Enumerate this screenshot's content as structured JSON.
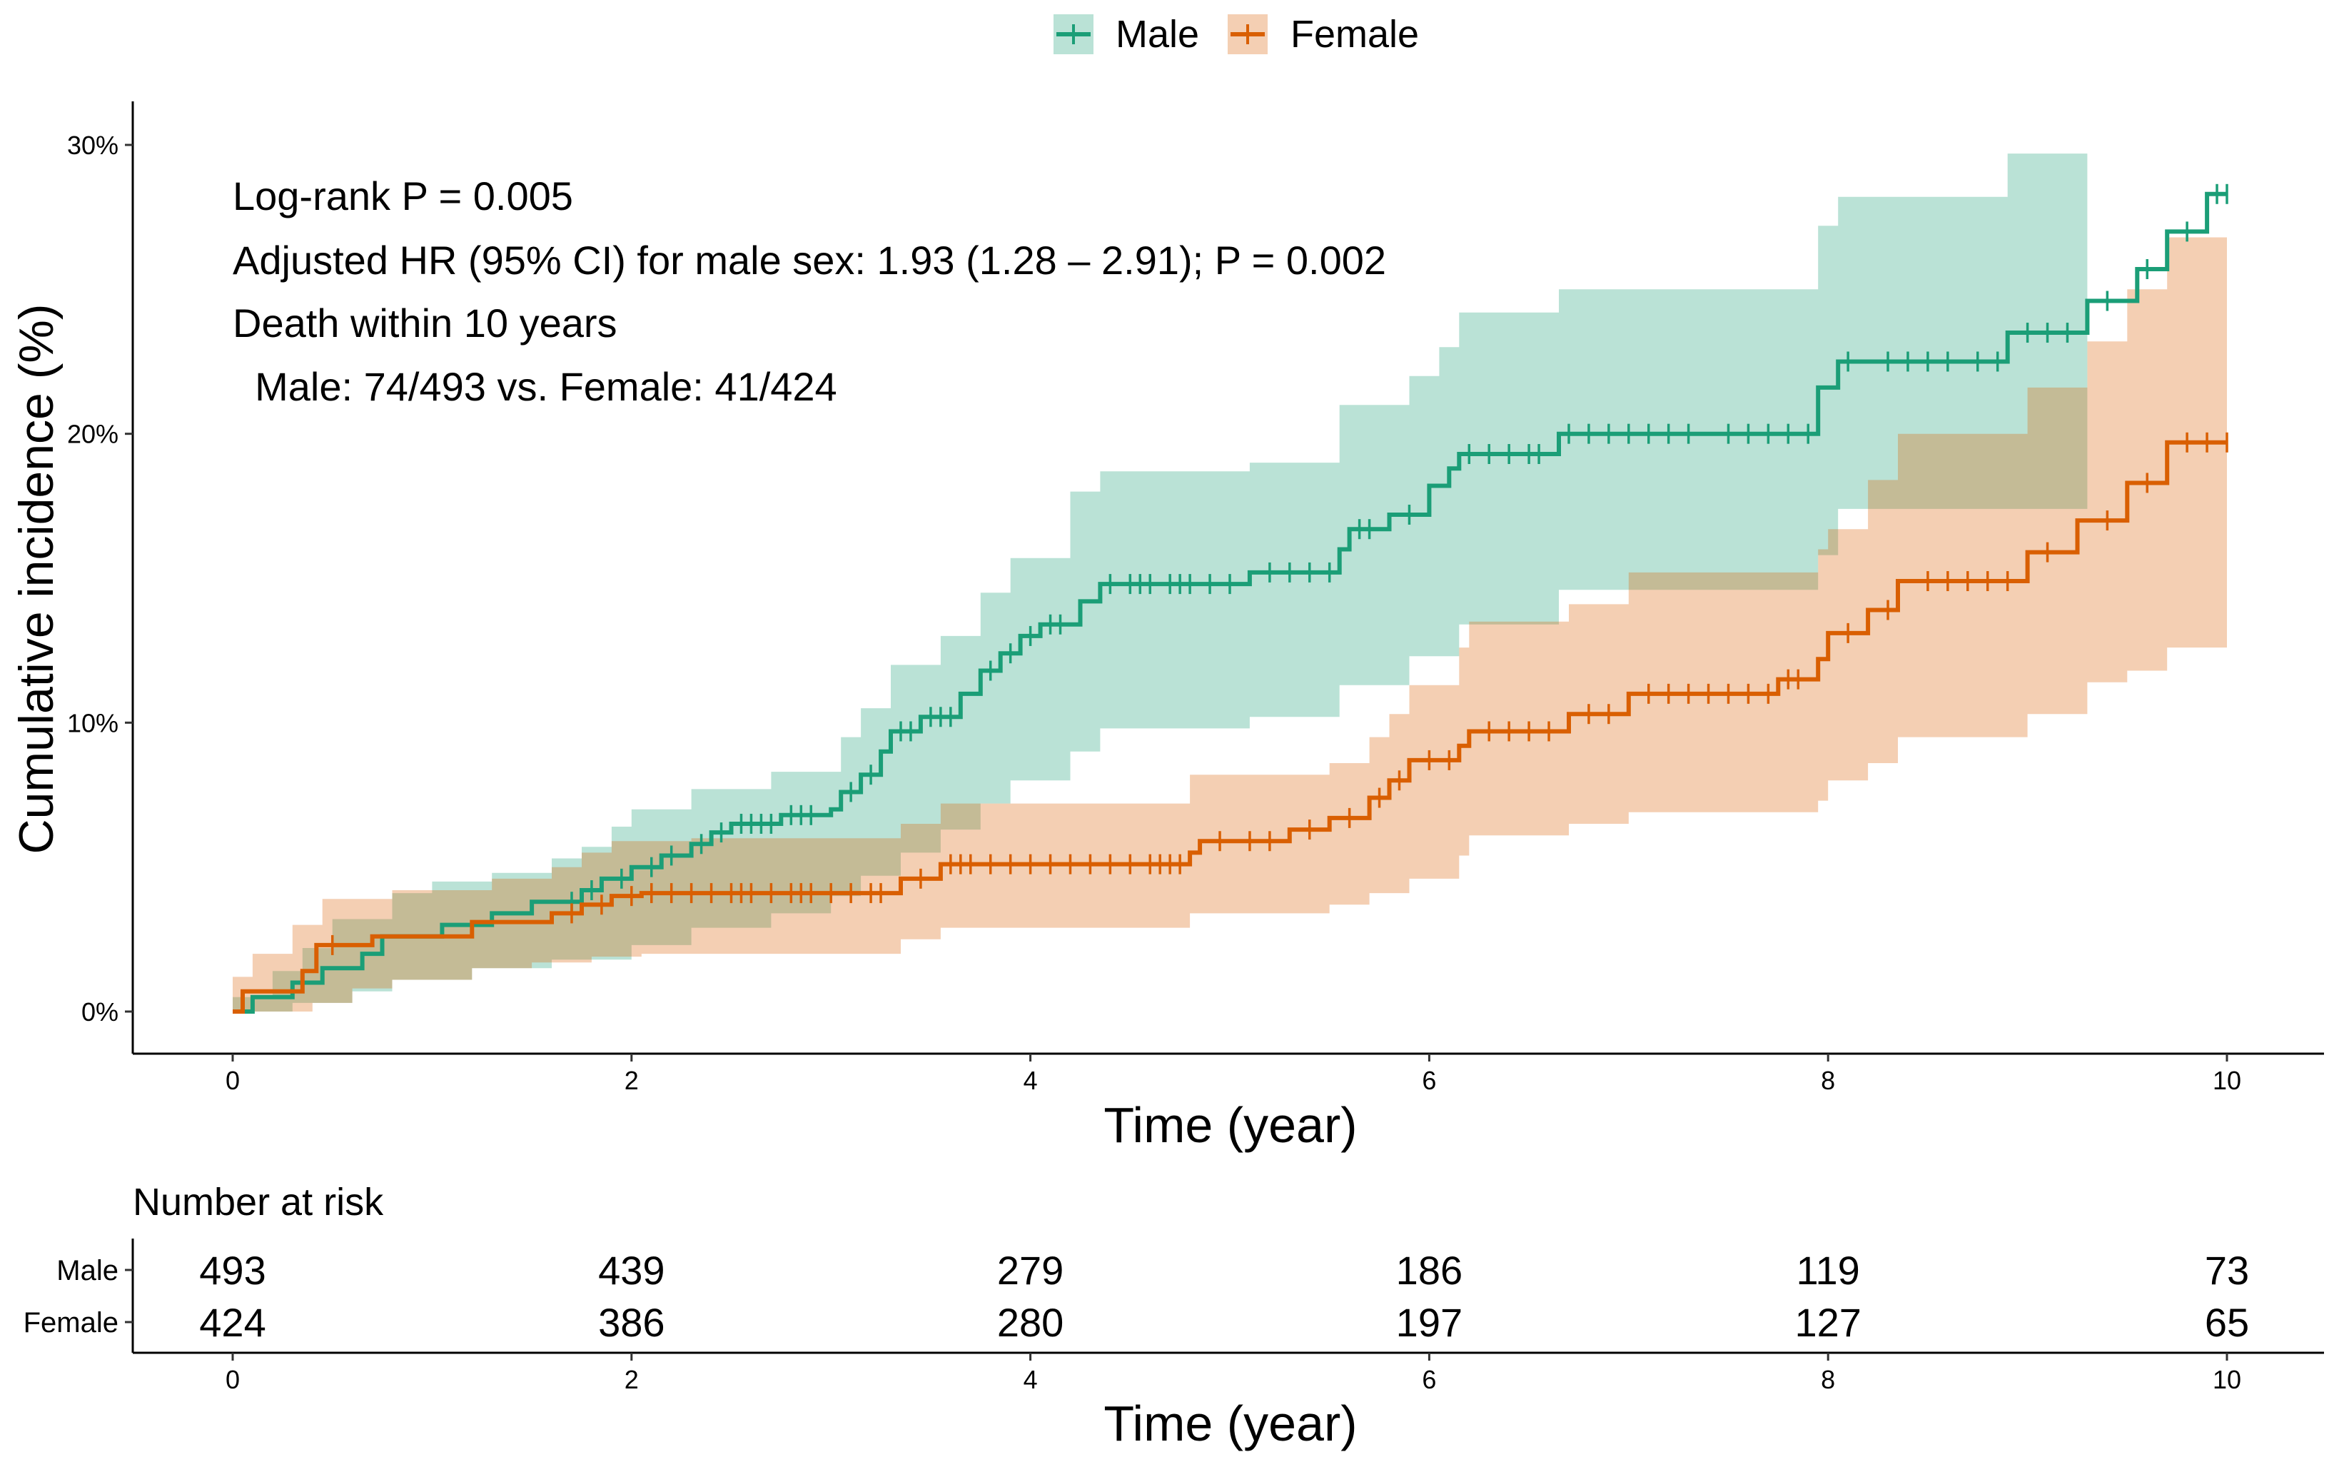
{
  "colors": {
    "male": "#1B9E77",
    "female": "#D95F02",
    "axis": "#000000"
  },
  "chart_data": {
    "type": "line",
    "subtype": "cumulative-incidence-step",
    "xlabel": "Time (year)",
    "ylabel": "Cumulative incidence (%)",
    "xlim": [
      0,
      10
    ],
    "ylim": [
      0,
      30
    ],
    "x_ticks": [
      0,
      2,
      4,
      6,
      8,
      10
    ],
    "x_tick_labels": [
      "0",
      "2",
      "4",
      "6",
      "8",
      "10"
    ],
    "y_ticks": [
      0,
      10,
      20,
      30
    ],
    "y_tick_labels": [
      "0%",
      "10%",
      "20%",
      "30%"
    ],
    "grid": false,
    "legend": {
      "placement": "top",
      "entries": [
        "Male",
        "Female"
      ]
    },
    "annotations": [
      "Log-rank P = 0.005",
      "Adjusted HR (95% CI) for male sex: 1.93 (1.28 – 2.91); P = 0.002",
      "Death within 10 years",
      "  Male: 74/493 vs. Female: 41/424"
    ],
    "series": [
      {
        "name": "Male",
        "color": "#1B9E77",
        "steps": [
          [
            0,
            0
          ],
          [
            0.1,
            0.5
          ],
          [
            0.3,
            1.0
          ],
          [
            0.45,
            1.5
          ],
          [
            0.65,
            2.0
          ],
          [
            0.75,
            2.6
          ],
          [
            1.05,
            3.0
          ],
          [
            1.3,
            3.4
          ],
          [
            1.5,
            3.8
          ],
          [
            1.75,
            4.2
          ],
          [
            1.85,
            4.6
          ],
          [
            2.0,
            5.0
          ],
          [
            2.15,
            5.4
          ],
          [
            2.3,
            5.8
          ],
          [
            2.4,
            6.2
          ],
          [
            2.5,
            6.5
          ],
          [
            2.75,
            6.8
          ],
          [
            3.0,
            7.0
          ],
          [
            3.05,
            7.6
          ],
          [
            3.15,
            8.2
          ],
          [
            3.25,
            9.0
          ],
          [
            3.3,
            9.7
          ],
          [
            3.45,
            10.2
          ],
          [
            3.65,
            11.0
          ],
          [
            3.75,
            11.8
          ],
          [
            3.85,
            12.4
          ],
          [
            3.95,
            13.0
          ],
          [
            4.05,
            13.4
          ],
          [
            4.25,
            14.2
          ],
          [
            4.35,
            14.8
          ],
          [
            5.1,
            15.2
          ],
          [
            5.55,
            16.0
          ],
          [
            5.6,
            16.7
          ],
          [
            5.8,
            17.2
          ],
          [
            6.0,
            18.2
          ],
          [
            6.1,
            18.8
          ],
          [
            6.15,
            19.3
          ],
          [
            6.65,
            20.0
          ],
          [
            7.95,
            21.6
          ],
          [
            8.05,
            22.5
          ],
          [
            8.9,
            23.5
          ],
          [
            9.3,
            24.6
          ],
          [
            9.55,
            25.7
          ],
          [
            9.7,
            27.0
          ],
          [
            9.9,
            28.3
          ],
          [
            10,
            28.3
          ]
        ],
        "ci_upper": [
          [
            0,
            0.5
          ],
          [
            0.2,
            1.4
          ],
          [
            0.35,
            2.2
          ],
          [
            0.5,
            3.2
          ],
          [
            0.8,
            4.1
          ],
          [
            1.0,
            4.5
          ],
          [
            1.3,
            4.8
          ],
          [
            1.6,
            5.3
          ],
          [
            1.75,
            5.7
          ],
          [
            1.9,
            6.4
          ],
          [
            2.0,
            7.0
          ],
          [
            2.3,
            7.7
          ],
          [
            2.7,
            8.3
          ],
          [
            3.05,
            9.5
          ],
          [
            3.15,
            10.5
          ],
          [
            3.3,
            12.0
          ],
          [
            3.55,
            13.0
          ],
          [
            3.75,
            14.5
          ],
          [
            3.9,
            15.7
          ],
          [
            4.2,
            18.0
          ],
          [
            4.35,
            18.7
          ],
          [
            5.1,
            19.0
          ],
          [
            5.55,
            21.0
          ],
          [
            5.9,
            22.0
          ],
          [
            6.05,
            23.0
          ],
          [
            6.15,
            24.2
          ],
          [
            6.65,
            25.0
          ],
          [
            7.95,
            27.2
          ],
          [
            8.05,
            28.2
          ],
          [
            8.9,
            29.7
          ],
          [
            9.3,
            29.7
          ]
        ],
        "ci_lower": [
          [
            0,
            0
          ],
          [
            0.3,
            0.3
          ],
          [
            0.6,
            0.7
          ],
          [
            0.8,
            1.1
          ],
          [
            1.2,
            1.5
          ],
          [
            1.6,
            1.8
          ],
          [
            2.0,
            2.3
          ],
          [
            2.3,
            2.9
          ],
          [
            2.7,
            3.4
          ],
          [
            3.0,
            4.0
          ],
          [
            3.15,
            4.7
          ],
          [
            3.35,
            5.5
          ],
          [
            3.55,
            6.3
          ],
          [
            3.75,
            7.2
          ],
          [
            3.9,
            8.0
          ],
          [
            4.2,
            9.0
          ],
          [
            4.35,
            9.8
          ],
          [
            5.1,
            10.2
          ],
          [
            5.55,
            11.3
          ],
          [
            5.9,
            12.3
          ],
          [
            6.15,
            13.4
          ],
          [
            6.65,
            14.6
          ],
          [
            7.95,
            15.8
          ],
          [
            8.05,
            17.4
          ],
          [
            9.3,
            17.4
          ]
        ],
        "censored": [
          1.7,
          1.8,
          1.95,
          2.1,
          2.2,
          2.35,
          2.45,
          2.55,
          2.6,
          2.65,
          2.7,
          2.8,
          2.85,
          2.9,
          3.1,
          3.2,
          3.35,
          3.4,
          3.5,
          3.55,
          3.6,
          3.8,
          3.9,
          4.0,
          4.1,
          4.15,
          4.4,
          4.5,
          4.55,
          4.6,
          4.7,
          4.75,
          4.8,
          4.9,
          5.0,
          5.2,
          5.3,
          5.4,
          5.5,
          5.65,
          5.7,
          5.9,
          6.2,
          6.3,
          6.4,
          6.5,
          6.55,
          6.7,
          6.8,
          6.9,
          7.0,
          7.1,
          7.2,
          7.3,
          7.5,
          7.6,
          7.7,
          7.8,
          7.9,
          8.1,
          8.3,
          8.4,
          8.5,
          8.6,
          8.75,
          8.85,
          9.0,
          9.1,
          9.2,
          9.4,
          9.6,
          9.8,
          9.95,
          10.0
        ]
      },
      {
        "name": "Female",
        "color": "#D95F02",
        "steps": [
          [
            0,
            0
          ],
          [
            0.05,
            0.7
          ],
          [
            0.35,
            1.4
          ],
          [
            0.42,
            2.3
          ],
          [
            0.7,
            2.6
          ],
          [
            1.2,
            3.1
          ],
          [
            1.6,
            3.4
          ],
          [
            1.75,
            3.7
          ],
          [
            1.9,
            4.0
          ],
          [
            2.05,
            4.1
          ],
          [
            3.35,
            4.6
          ],
          [
            3.55,
            5.1
          ],
          [
            4.8,
            5.5
          ],
          [
            4.85,
            5.9
          ],
          [
            5.3,
            6.3
          ],
          [
            5.5,
            6.7
          ],
          [
            5.7,
            7.4
          ],
          [
            5.8,
            8.0
          ],
          [
            5.9,
            8.7
          ],
          [
            6.15,
            9.2
          ],
          [
            6.2,
            9.7
          ],
          [
            6.7,
            10.3
          ],
          [
            7.0,
            11.0
          ],
          [
            7.75,
            11.5
          ],
          [
            7.95,
            12.2
          ],
          [
            8.0,
            13.1
          ],
          [
            8.2,
            13.9
          ],
          [
            8.35,
            14.9
          ],
          [
            9.0,
            15.9
          ],
          [
            9.25,
            17.0
          ],
          [
            9.5,
            18.3
          ],
          [
            9.7,
            19.7
          ],
          [
            10,
            19.7
          ]
        ],
        "ci_upper": [
          [
            0,
            1.2
          ],
          [
            0.1,
            2.0
          ],
          [
            0.3,
            3.0
          ],
          [
            0.45,
            3.9
          ],
          [
            0.8,
            4.2
          ],
          [
            1.3,
            4.6
          ],
          [
            1.6,
            5.0
          ],
          [
            1.75,
            5.5
          ],
          [
            1.9,
            5.9
          ],
          [
            2.3,
            6.0
          ],
          [
            3.35,
            6.5
          ],
          [
            3.55,
            7.2
          ],
          [
            4.8,
            8.2
          ],
          [
            5.5,
            8.6
          ],
          [
            5.7,
            9.5
          ],
          [
            5.8,
            10.3
          ],
          [
            5.9,
            11.3
          ],
          [
            6.15,
            12.6
          ],
          [
            6.2,
            13.5
          ],
          [
            6.7,
            14.1
          ],
          [
            7.0,
            15.2
          ],
          [
            7.95,
            16.0
          ],
          [
            8.0,
            16.7
          ],
          [
            8.2,
            18.4
          ],
          [
            8.35,
            20.0
          ],
          [
            9.0,
            21.6
          ],
          [
            9.3,
            23.2
          ],
          [
            9.5,
            25.0
          ],
          [
            9.7,
            26.8
          ],
          [
            10,
            26.8
          ]
        ],
        "ci_lower": [
          [
            0,
            0
          ],
          [
            0.4,
            0.3
          ],
          [
            0.6,
            0.8
          ],
          [
            0.8,
            1.1
          ],
          [
            1.2,
            1.5
          ],
          [
            1.5,
            1.7
          ],
          [
            1.8,
            1.9
          ],
          [
            2.05,
            2.0
          ],
          [
            3.35,
            2.5
          ],
          [
            3.55,
            2.9
          ],
          [
            4.8,
            3.4
          ],
          [
            5.5,
            3.7
          ],
          [
            5.7,
            4.1
          ],
          [
            5.9,
            4.6
          ],
          [
            6.15,
            5.4
          ],
          [
            6.2,
            6.1
          ],
          [
            6.7,
            6.5
          ],
          [
            7.0,
            6.9
          ],
          [
            7.95,
            7.3
          ],
          [
            8.0,
            8.0
          ],
          [
            8.2,
            8.6
          ],
          [
            8.35,
            9.5
          ],
          [
            9.0,
            10.3
          ],
          [
            9.3,
            11.4
          ],
          [
            9.5,
            11.8
          ],
          [
            9.7,
            12.6
          ],
          [
            10,
            12.6
          ]
        ],
        "censored": [
          0.5,
          1.7,
          1.85,
          2.0,
          2.1,
          2.2,
          2.3,
          2.4,
          2.5,
          2.55,
          2.6,
          2.7,
          2.8,
          2.85,
          2.9,
          3.0,
          3.1,
          3.2,
          3.25,
          3.45,
          3.6,
          3.65,
          3.7,
          3.8,
          3.9,
          4.0,
          4.1,
          4.2,
          4.3,
          4.4,
          4.5,
          4.6,
          4.65,
          4.7,
          4.75,
          4.95,
          5.1,
          5.2,
          5.4,
          5.6,
          5.75,
          5.85,
          6.0,
          6.1,
          6.3,
          6.4,
          6.5,
          6.6,
          6.8,
          6.9,
          7.1,
          7.2,
          7.3,
          7.4,
          7.5,
          7.6,
          7.7,
          7.8,
          7.85,
          8.1,
          8.3,
          8.5,
          8.6,
          8.7,
          8.8,
          8.9,
          9.1,
          9.4,
          9.6,
          9.8,
          9.9,
          10.0
        ]
      }
    ]
  },
  "risk_table": {
    "title": "Number at risk",
    "xlabel": "Time (year)",
    "times": [
      0,
      2,
      4,
      6,
      8,
      10
    ],
    "time_labels": [
      "0",
      "2",
      "4",
      "6",
      "8",
      "10"
    ],
    "rows": [
      {
        "label": "Male",
        "values": [
          "493",
          "439",
          "279",
          "186",
          "119",
          "73"
        ]
      },
      {
        "label": "Female",
        "values": [
          "424",
          "386",
          "280",
          "197",
          "127",
          "65"
        ]
      }
    ]
  }
}
